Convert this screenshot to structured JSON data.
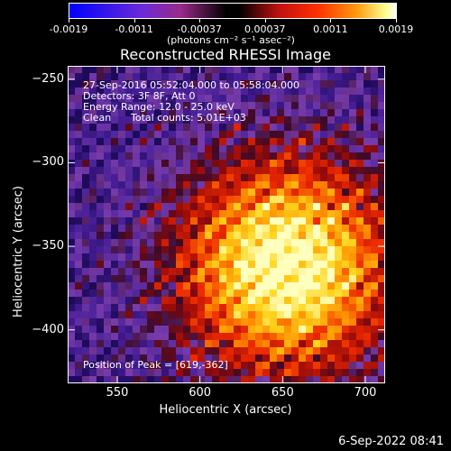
{
  "colorbar": {
    "ticks": [
      "-0.0019",
      "-0.0011",
      "-0.00037",
      "0.00037",
      "0.0011",
      "0.0019"
    ],
    "units": "(photons cm⁻² s⁻¹ asec⁻²)"
  },
  "chart_data": {
    "type": "heatmap",
    "title": "Reconstructed RHESSI Image",
    "xlabel": "Heliocentric X (arcsec)",
    "ylabel": "Heliocentric Y (arcsec)",
    "xlim": [
      520,
      712
    ],
    "ylim": [
      -432,
      -242
    ],
    "xticks": [
      550,
      600,
      650,
      700
    ],
    "yticks": [
      -250,
      -300,
      -350,
      -400
    ],
    "value_range": [
      -0.0019,
      0.0019
    ],
    "peak": [
      619,
      -362
    ],
    "colormap": "blue-purple-black-red-orange-yellow-white"
  },
  "annotations": {
    "time": "27-Sep-2016 05:52:04.000 to 05:58:04.000",
    "detectors": "Detectors: 3F 8F, Att 0",
    "energy": "Energy Range: 12.0 - 25.0 keV",
    "method": "Clean",
    "counts": "Total counts: 5.01E+03",
    "peak_text": "Position of Peak = [619,-362]"
  },
  "footer": {
    "date": "6-Sep-2022 08:41"
  }
}
